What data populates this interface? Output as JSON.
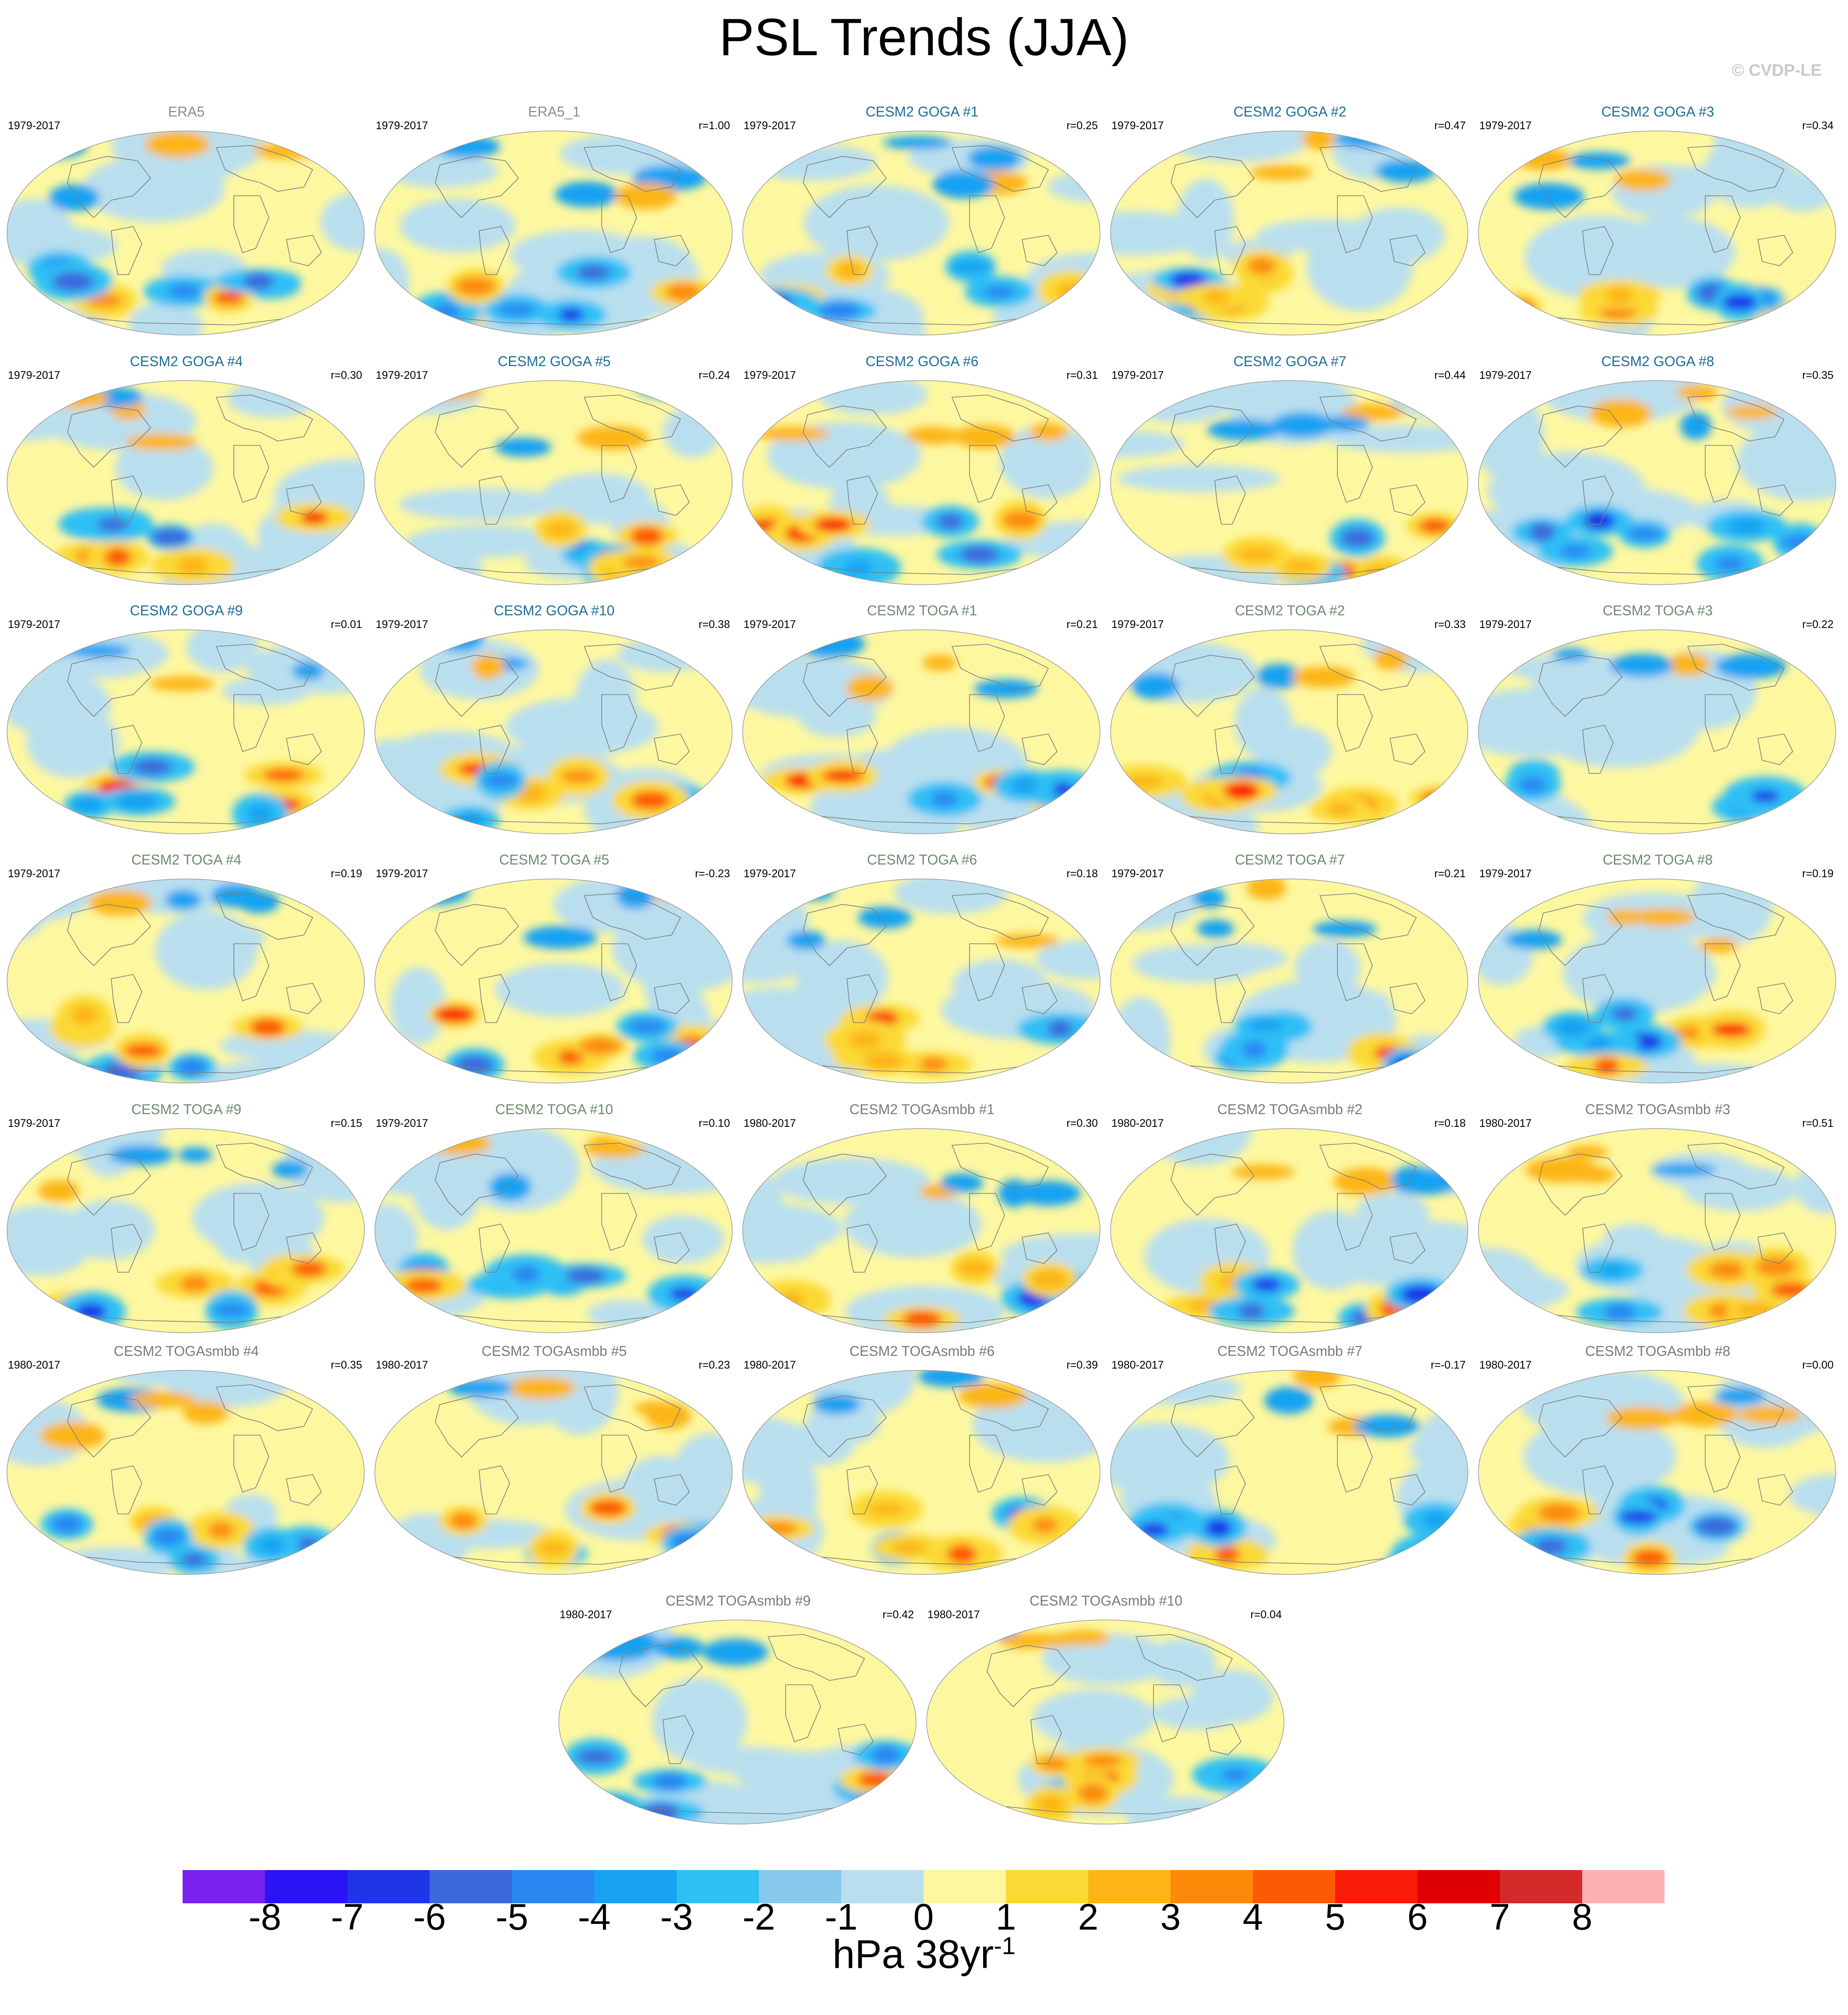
{
  "title": "PSL Trends (JJA)",
  "watermark": "© CVDP-LE",
  "colors": {
    "obs_title": "#8c8c8c",
    "goga_title": "#1f6e96",
    "toga_title": "#6f8a6f",
    "smbb_title": "#7a7a7a",
    "ocean_base": "#b9dcee",
    "coast": "#7d7d7d"
  },
  "panels": [
    {
      "title": "ERA5",
      "period": "1979-2017",
      "r": "",
      "group": "obs"
    },
    {
      "title": "ERA5_1",
      "period": "1979-2017",
      "r": "r=1.00",
      "group": "obs"
    },
    {
      "title": "CESM2 GOGA #1",
      "period": "1979-2017",
      "r": "r=0.25",
      "group": "goga"
    },
    {
      "title": "CESM2 GOGA #2",
      "period": "1979-2017",
      "r": "r=0.47",
      "group": "goga"
    },
    {
      "title": "CESM2 GOGA #3",
      "period": "1979-2017",
      "r": "r=0.34",
      "group": "goga"
    },
    {
      "title": "CESM2 GOGA #4",
      "period": "1979-2017",
      "r": "r=0.30",
      "group": "goga"
    },
    {
      "title": "CESM2 GOGA #5",
      "period": "1979-2017",
      "r": "r=0.24",
      "group": "goga"
    },
    {
      "title": "CESM2 GOGA #6",
      "period": "1979-2017",
      "r": "r=0.31",
      "group": "goga"
    },
    {
      "title": "CESM2 GOGA #7",
      "period": "1979-2017",
      "r": "r=0.44",
      "group": "goga"
    },
    {
      "title": "CESM2 GOGA #8",
      "period": "1979-2017",
      "r": "r=0.35",
      "group": "goga"
    },
    {
      "title": "CESM2 GOGA #9",
      "period": "1979-2017",
      "r": "r=0.01",
      "group": "goga"
    },
    {
      "title": "CESM2 GOGA #10",
      "period": "1979-2017",
      "r": "r=0.38",
      "group": "goga"
    },
    {
      "title": "CESM2 TOGA #1",
      "period": "1979-2017",
      "r": "r=0.21",
      "group": "toga"
    },
    {
      "title": "CESM2 TOGA #2",
      "period": "1979-2017",
      "r": "r=0.33",
      "group": "toga"
    },
    {
      "title": "CESM2 TOGA #3",
      "period": "1979-2017",
      "r": "r=0.22",
      "group": "toga"
    },
    {
      "title": "CESM2 TOGA #4",
      "period": "1979-2017",
      "r": "r=0.19",
      "group": "toga"
    },
    {
      "title": "CESM2 TOGA #5",
      "period": "1979-2017",
      "r": "r=-0.23",
      "group": "toga"
    },
    {
      "title": "CESM2 TOGA #6",
      "period": "1979-2017",
      "r": "r=0.18",
      "group": "toga"
    },
    {
      "title": "CESM2 TOGA #7",
      "period": "1979-2017",
      "r": "r=0.21",
      "group": "toga"
    },
    {
      "title": "CESM2 TOGA #8",
      "period": "1979-2017",
      "r": "r=0.19",
      "group": "toga"
    },
    {
      "title": "CESM2 TOGA #9",
      "period": "1979-2017",
      "r": "r=0.15",
      "group": "toga"
    },
    {
      "title": "CESM2 TOGA #10",
      "period": "1979-2017",
      "r": "r=0.10",
      "group": "toga"
    },
    {
      "title": "CESM2 TOGAsmbb #1",
      "period": "1980-2017",
      "r": "r=0.30",
      "group": "smbb"
    },
    {
      "title": "CESM2 TOGAsmbb #2",
      "period": "1980-2017",
      "r": "r=0.18",
      "group": "smbb"
    },
    {
      "title": "CESM2 TOGAsmbb #3",
      "period": "1980-2017",
      "r": "r=0.51",
      "group": "smbb"
    },
    {
      "title": "CESM2 TOGAsmbb #4",
      "period": "1980-2017",
      "r": "r=0.35",
      "group": "smbb"
    },
    {
      "title": "CESM2 TOGAsmbb #5",
      "period": "1980-2017",
      "r": "r=0.23",
      "group": "smbb"
    },
    {
      "title": "CESM2 TOGAsmbb #6",
      "period": "1980-2017",
      "r": "r=0.39",
      "group": "smbb"
    },
    {
      "title": "CESM2 TOGAsmbb #7",
      "period": "1980-2017",
      "r": "r=-0.17",
      "group": "smbb"
    },
    {
      "title": "CESM2 TOGAsmbb #8",
      "period": "1980-2017",
      "r": "r=0.00",
      "group": "smbb"
    },
    {
      "title": "CESM2 TOGAsmbb #9",
      "period": "1980-2017",
      "r": "r=0.42",
      "group": "smbb"
    },
    {
      "title": "CESM2 TOGAsmbb #10",
      "period": "1980-2017",
      "r": "r=0.04",
      "group": "smbb"
    }
  ],
  "colorbar": {
    "colors": [
      "#7a22ee",
      "#2a14f5",
      "#1f35e8",
      "#3a69db",
      "#2a87f2",
      "#18a2f2",
      "#2dc0f5",
      "#86c9ec",
      "#b9dfef",
      "#fdf7a0",
      "#fbd934",
      "#fcb515",
      "#fc8a08",
      "#fc5a05",
      "#fa1c06",
      "#de0004",
      "#d52a2a",
      "#fdb2b2"
    ],
    "ticks": [
      "-8",
      "-7",
      "-6",
      "-5",
      "-4",
      "-3",
      "-2",
      "-1",
      "0",
      "1",
      "2",
      "3",
      "4",
      "5",
      "6",
      "7",
      "8"
    ],
    "units_main": "hPa 38yr",
    "units_exp": "-1"
  },
  "chart_data": {
    "type": "heatmap",
    "title": "PSL Trends (JJA)",
    "variable": "PSL trend",
    "season": "JJA",
    "units": "hPa 38yr-1",
    "levels": [
      -8,
      -7,
      -6,
      -5,
      -4,
      -3,
      -2,
      -1,
      0,
      1,
      2,
      3,
      4,
      5,
      6,
      7,
      8
    ],
    "panel_count": 32,
    "pattern_correlations_with_ERA5": {
      "ERA5_1": 1.0,
      "CESM2 GOGA #1": 0.25,
      "CESM2 GOGA #2": 0.47,
      "CESM2 GOGA #3": 0.34,
      "CESM2 GOGA #4": 0.3,
      "CESM2 GOGA #5": 0.24,
      "CESM2 GOGA #6": 0.31,
      "CESM2 GOGA #7": 0.44,
      "CESM2 GOGA #8": 0.35,
      "CESM2 GOGA #9": 0.01,
      "CESM2 GOGA #10": 0.38,
      "CESM2 TOGA #1": 0.21,
      "CESM2 TOGA #2": 0.33,
      "CESM2 TOGA #3": 0.22,
      "CESM2 TOGA #4": 0.19,
      "CESM2 TOGA #5": -0.23,
      "CESM2 TOGA #6": 0.18,
      "CESM2 TOGA #7": 0.21,
      "CESM2 TOGA #8": 0.19,
      "CESM2 TOGA #9": 0.15,
      "CESM2 TOGA #10": 0.1,
      "CESM2 TOGAsmbb #1": 0.3,
      "CESM2 TOGAsmbb #2": 0.18,
      "CESM2 TOGAsmbb #3": 0.51,
      "CESM2 TOGAsmbb #4": 0.35,
      "CESM2 TOGAsmbb #5": 0.23,
      "CESM2 TOGAsmbb #6": 0.39,
      "CESM2 TOGAsmbb #7": -0.17,
      "CESM2 TOGAsmbb #8": 0.0,
      "CESM2 TOGAsmbb #9": 0.42,
      "CESM2 TOGAsmbb #10": 0.04
    }
  }
}
